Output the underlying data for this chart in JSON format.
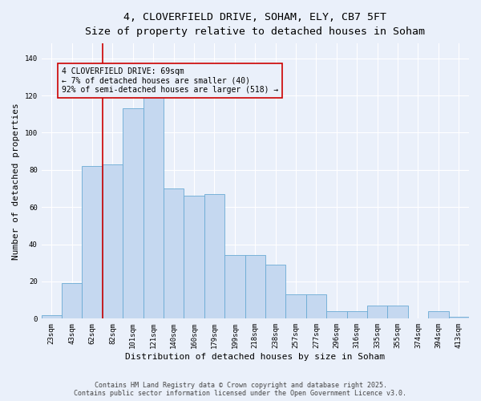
{
  "title_line1": "4, CLOVERFIELD DRIVE, SOHAM, ELY, CB7 5FT",
  "title_line2": "Size of property relative to detached houses in Soham",
  "xlabel": "Distribution of detached houses by size in Soham",
  "ylabel": "Number of detached properties",
  "categories": [
    "23sqm",
    "43sqm",
    "62sqm",
    "82sqm",
    "101sqm",
    "121sqm",
    "140sqm",
    "160sqm",
    "179sqm",
    "199sqm",
    "218sqm",
    "238sqm",
    "257sqm",
    "277sqm",
    "296sqm",
    "316sqm",
    "335sqm",
    "355sqm",
    "374sqm",
    "394sqm",
    "413sqm"
  ],
  "values": [
    2,
    19,
    82,
    83,
    113,
    125,
    70,
    66,
    67,
    34,
    34,
    29,
    13,
    13,
    4,
    4,
    7,
    7,
    0,
    4,
    1
  ],
  "bar_color": "#c5d8f0",
  "bar_edge_color": "#6aaad4",
  "vline_x_index": 2.5,
  "vline_color": "#cc0000",
  "annotation_text": "4 CLOVERFIELD DRIVE: 69sqm\n← 7% of detached houses are smaller (40)\n92% of semi-detached houses are larger (518) →",
  "ylim": [
    0,
    148
  ],
  "yticks": [
    0,
    20,
    40,
    60,
    80,
    100,
    120,
    140
  ],
  "bg_color": "#eaf0fa",
  "grid_color": "#ffffff",
  "footer_line1": "Contains HM Land Registry data © Crown copyright and database right 2025.",
  "footer_line2": "Contains public sector information licensed under the Open Government Licence v3.0.",
  "title_fontsize": 9.5,
  "subtitle_fontsize": 8.5,
  "tick_fontsize": 6.5,
  "xlabel_fontsize": 8,
  "ylabel_fontsize": 8,
  "annotation_fontsize": 7,
  "footer_fontsize": 6
}
